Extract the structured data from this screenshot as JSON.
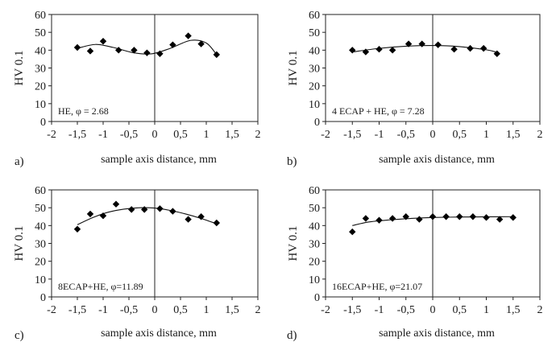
{
  "chart_data": [
    {
      "type": "scatter",
      "panel_label": "a)",
      "annotation": "HE, φ = 2.68",
      "xlabel": "sample axis distance, mm",
      "ylabel": "HV 0.1",
      "xlim": [
        -2,
        2
      ],
      "ylim": [
        0,
        60
      ],
      "x_ticks": [
        "-2",
        "-1,5",
        "-1",
        "-0,5",
        "0",
        "0,5",
        "1",
        "1,5",
        "2"
      ],
      "y_ticks": [
        "0",
        "10",
        "20",
        "30",
        "40",
        "50",
        "60"
      ],
      "trendline": true,
      "trend": [
        [
          -1.5,
          41
        ],
        [
          -1.15,
          43.2
        ],
        [
          -0.8,
          41.5
        ],
        [
          -0.4,
          38.5
        ],
        [
          -0.05,
          38
        ],
        [
          0.3,
          41
        ],
        [
          0.7,
          45.5
        ],
        [
          1.0,
          44
        ],
        [
          1.2,
          37.5
        ]
      ],
      "series": [
        {
          "x": [
            -1.5,
            -1.25,
            -1.0,
            -0.7,
            -0.4,
            -0.15,
            0.1,
            0.35,
            0.65,
            0.9,
            1.2
          ],
          "y": [
            41.5,
            39.5,
            45,
            40,
            40,
            38.5,
            38,
            43,
            48,
            43.5,
            37.5
          ]
        }
      ]
    },
    {
      "type": "scatter",
      "panel_label": "b)",
      "annotation": "4 ECAP + HE, φ = 7.28",
      "xlabel": "sample axis distance, mm",
      "ylabel": "HV 0.1",
      "xlim": [
        -2,
        2
      ],
      "ylim": [
        0,
        60
      ],
      "x_ticks": [
        "-2",
        "-1,5",
        "-1",
        "-0,5",
        "0",
        "0,5",
        "1",
        "1,5",
        "2"
      ],
      "y_ticks": [
        "0",
        "10",
        "20",
        "30",
        "40",
        "50",
        "60"
      ],
      "trendline": true,
      "trend": [
        [
          -1.5,
          39
        ],
        [
          -1.0,
          41
        ],
        [
          -0.5,
          42.2
        ],
        [
          0.0,
          42.6
        ],
        [
          0.5,
          42
        ],
        [
          1.0,
          40.2
        ],
        [
          1.2,
          38.8
        ]
      ],
      "series": [
        {
          "x": [
            -1.5,
            -1.25,
            -1.0,
            -0.75,
            -0.45,
            -0.2,
            0.1,
            0.4,
            0.7,
            0.95,
            1.2
          ],
          "y": [
            40,
            39,
            40.5,
            40,
            43.5,
            43.5,
            43,
            40.5,
            41,
            41,
            38
          ]
        }
      ]
    },
    {
      "type": "scatter",
      "panel_label": "c)",
      "annotation": "8ECAP+HE, φ=11.89",
      "xlabel": "sample axis distance, mm",
      "ylabel": "HV 0.1",
      "xlim": [
        -2,
        2
      ],
      "ylim": [
        0,
        60
      ],
      "x_ticks": [
        "-2",
        "-1,5",
        "-1",
        "-0,5",
        "0",
        "0,5",
        "1",
        "1,5",
        "2"
      ],
      "y_ticks": [
        "0",
        "10",
        "20",
        "30",
        "40",
        "50",
        "60"
      ],
      "trendline": true,
      "trend": [
        [
          -1.5,
          40.5
        ],
        [
          -1.2,
          44.5
        ],
        [
          -0.9,
          47.5
        ],
        [
          -0.6,
          49.2
        ],
        [
          -0.3,
          50
        ],
        [
          0.0,
          49.8
        ],
        [
          0.3,
          48.5
        ],
        [
          0.6,
          46.5
        ],
        [
          0.9,
          44
        ],
        [
          1.2,
          41
        ]
      ],
      "series": [
        {
          "x": [
            -1.5,
            -1.25,
            -1.0,
            -0.75,
            -0.45,
            -0.2,
            0.1,
            0.35,
            0.65,
            0.9,
            1.2
          ],
          "y": [
            38,
            46.5,
            45.5,
            52,
            49,
            49,
            49.5,
            48,
            43.5,
            45,
            41.5
          ]
        }
      ]
    },
    {
      "type": "scatter",
      "panel_label": "d)",
      "annotation": "16ECAP+HE, φ=21.07",
      "xlabel": "sample axis distance, mm",
      "ylabel": "HV 0.1",
      "xlim": [
        -2,
        2
      ],
      "ylim": [
        0,
        60
      ],
      "x_ticks": [
        "-2",
        "-1,5",
        "-1",
        "-0,5",
        "0",
        "0,5",
        "1",
        "1,5",
        "2"
      ],
      "y_ticks": [
        "0",
        "10",
        "20",
        "30",
        "40",
        "50",
        "60"
      ],
      "trendline": true,
      "trend": [
        [
          -1.5,
          40
        ],
        [
          -1.2,
          42
        ],
        [
          -0.8,
          43.2
        ],
        [
          -0.4,
          44
        ],
        [
          0.0,
          44.5
        ],
        [
          0.5,
          44.8
        ],
        [
          1.0,
          44.9
        ],
        [
          1.5,
          45
        ]
      ],
      "series": [
        {
          "x": [
            -1.5,
            -1.25,
            -1.0,
            -0.75,
            -0.5,
            -0.25,
            0.0,
            0.25,
            0.5,
            0.75,
            1.0,
            1.25,
            1.5
          ],
          "y": [
            36.5,
            44,
            43,
            44,
            45,
            43.5,
            45,
            45,
            45,
            45,
            44.5,
            43.5,
            44.5
          ]
        }
      ]
    }
  ]
}
